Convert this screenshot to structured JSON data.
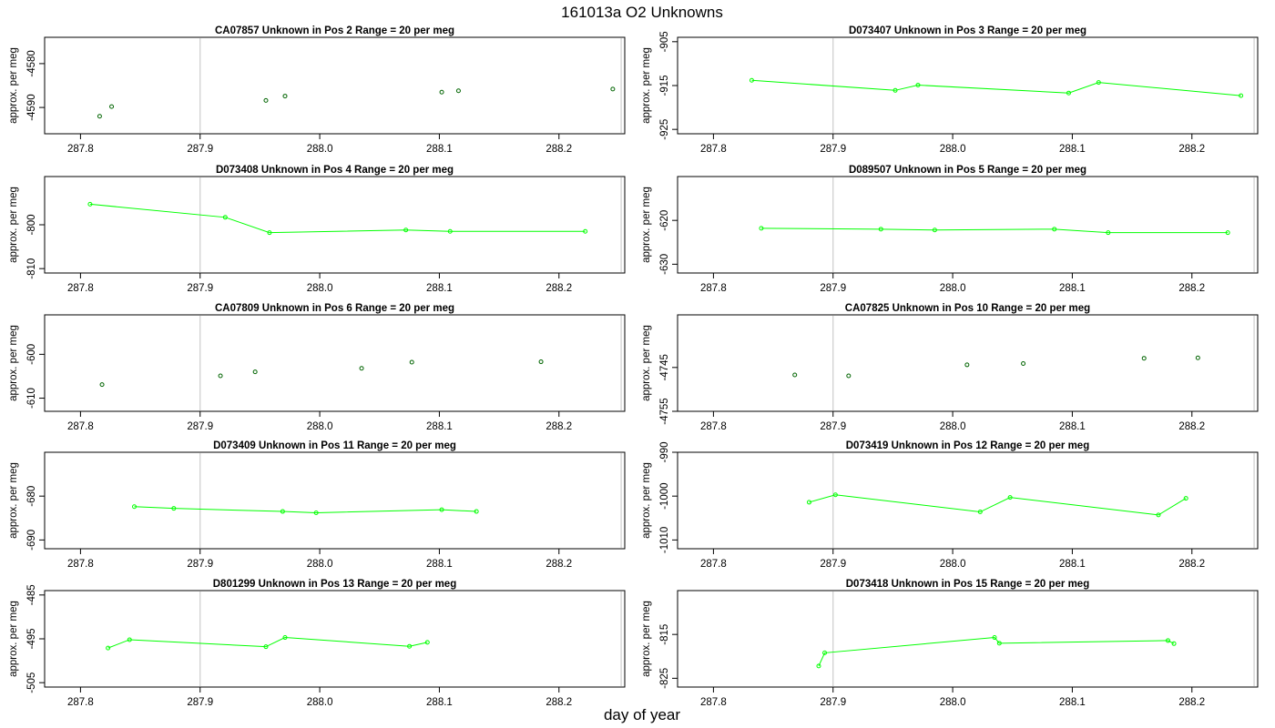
{
  "page": {
    "title": "161013a  O2 Unknowns",
    "xlabel": "day of year",
    "ylabel": "approx. per meg"
  },
  "colors": {
    "line": "#00ff00",
    "point_line": "#00ff00",
    "point_only": "#006400",
    "reference_line": "#cccccc",
    "frame": "#000000"
  },
  "chart_data": [
    {
      "type": "scatter",
      "title": "CA07857    Unknown in Pos 2          Range = 20 per meg",
      "xlabel": "",
      "ylabel": "approx. per meg",
      "xlim": [
        287.77,
        288.255
      ],
      "ylim": [
        -4596,
        -4574
      ],
      "yticks": [
        -4580,
        -4590
      ],
      "ytick_labels": [
        "-4580",
        "-4590"
      ],
      "xticks": [
        287.8,
        287.9,
        288.0,
        288.1,
        288.2
      ],
      "xtick_labels": [
        "287.8",
        "287.9",
        "288.0",
        "288.1",
        "288.2"
      ],
      "vlines": [
        287.9,
        288.252
      ],
      "connected": false,
      "series": [
        {
          "x": [
            287.816,
            287.826,
            287.955,
            287.971,
            288.102,
            288.116,
            288.245
          ],
          "y": [
            -4592.0,
            -4589.8,
            -4588.4,
            -4587.4,
            -4586.5,
            -4586.2,
            -4585.8
          ]
        }
      ]
    },
    {
      "type": "line",
      "title": "D073407    Unknown in Pos 3          Range = 20 per meg",
      "xlabel": "",
      "ylabel": "approx. per meg",
      "xlim": [
        287.77,
        288.255
      ],
      "ylim": [
        -926,
        -904
      ],
      "yticks": [
        -905,
        -915,
        -925
      ],
      "ytick_labels": [
        "-905",
        "-915",
        "-925"
      ],
      "xticks": [
        287.8,
        287.9,
        288.0,
        288.1,
        288.2
      ],
      "xtick_labels": [
        "287.8",
        "287.9",
        "288.0",
        "288.1",
        "288.2"
      ],
      "vlines": [
        287.9,
        288.252
      ],
      "connected": true,
      "series": [
        {
          "x": [
            287.832,
            287.952,
            287.971,
            288.097,
            288.122,
            288.241
          ],
          "y": [
            -913.8,
            -916.1,
            -914.9,
            -916.7,
            -914.3,
            -917.3
          ]
        }
      ]
    },
    {
      "type": "line",
      "title": "D073408    Unknown in Pos 4          Range = 20 per meg",
      "xlabel": "",
      "ylabel": "approx. per meg",
      "xlim": [
        287.77,
        288.255
      ],
      "ylim": [
        -811,
        -789
      ],
      "yticks": [
        -800,
        -810
      ],
      "ytick_labels": [
        "-800",
        "-810"
      ],
      "xticks": [
        287.8,
        287.9,
        288.0,
        288.1,
        288.2
      ],
      "xtick_labels": [
        "287.8",
        "287.9",
        "288.0",
        "288.1",
        "288.2"
      ],
      "vlines": [
        287.9,
        288.252
      ],
      "connected": true,
      "series": [
        {
          "x": [
            287.808,
            287.921,
            287.958,
            288.072,
            288.109,
            288.222
          ],
          "y": [
            -795.3,
            -798.3,
            -801.8,
            -801.2,
            -801.5,
            -801.5
          ]
        }
      ]
    },
    {
      "type": "line",
      "title": "D089507    Unknown in Pos 5          Range = 20 per meg",
      "xlabel": "",
      "ylabel": "approx. per meg",
      "xlim": [
        287.77,
        288.255
      ],
      "ylim": [
        -632,
        -610
      ],
      "yticks": [
        -620,
        -630
      ],
      "ytick_labels": [
        "-620",
        "-630"
      ],
      "xticks": [
        287.8,
        287.9,
        288.0,
        288.1,
        288.2
      ],
      "xtick_labels": [
        "287.8",
        "287.9",
        "288.0",
        "288.1",
        "288.2"
      ],
      "vlines": [
        287.9,
        288.252
      ],
      "connected": true,
      "series": [
        {
          "x": [
            287.84,
            287.94,
            287.985,
            288.085,
            288.13,
            288.23
          ],
          "y": [
            -621.8,
            -622.0,
            -622.2,
            -622.0,
            -622.8,
            -622.8
          ]
        }
      ]
    },
    {
      "type": "scatter",
      "title": "CA07809    Unknown in Pos 6          Range = 20 per meg",
      "xlabel": "",
      "ylabel": "approx. per meg",
      "xlim": [
        287.77,
        288.255
      ],
      "ylim": [
        -613,
        -591
      ],
      "yticks": [
        -600,
        -610
      ],
      "ytick_labels": [
        "-600",
        "-610"
      ],
      "xticks": [
        287.8,
        287.9,
        288.0,
        288.1,
        288.2
      ],
      "xtick_labels": [
        "287.8",
        "287.9",
        "288.0",
        "288.1",
        "288.2"
      ],
      "vlines": [
        287.9,
        288.252
      ],
      "connected": false,
      "series": [
        {
          "x": [
            287.818,
            287.917,
            287.946,
            288.035,
            288.077,
            288.185
          ],
          "y": [
            -606.9,
            -604.9,
            -604.0,
            -603.2,
            -601.8,
            -601.7
          ]
        }
      ]
    },
    {
      "type": "scatter",
      "title": "CA07825    Unknown in Pos 10          Range = 20 per meg",
      "xlabel": "",
      "ylabel": "approx. per meg",
      "xlim": [
        287.77,
        288.255
      ],
      "ylim": [
        -4755,
        -4733
      ],
      "yticks": [
        -4745,
        -4755
      ],
      "ytick_labels": [
        "-4745",
        "-4755"
      ],
      "xticks": [
        287.8,
        287.9,
        288.0,
        288.1,
        288.2
      ],
      "xtick_labels": [
        "287.8",
        "287.9",
        "288.0",
        "288.1",
        "288.2"
      ],
      "vlines": [
        287.9,
        288.252
      ],
      "connected": false,
      "series": [
        {
          "x": [
            287.868,
            287.913,
            288.012,
            288.059,
            288.16,
            288.205
          ],
          "y": [
            -4746.7,
            -4746.9,
            -4744.4,
            -4744.1,
            -4742.9,
            -4742.8
          ]
        }
      ]
    },
    {
      "type": "line",
      "title": "D073409    Unknown in Pos 11          Range = 20 per meg",
      "xlabel": "",
      "ylabel": "approx. per meg",
      "xlim": [
        287.77,
        288.255
      ],
      "ylim": [
        -692,
        -670
      ],
      "yticks": [
        -680,
        -690
      ],
      "ytick_labels": [
        "-680",
        "-690"
      ],
      "xticks": [
        287.8,
        287.9,
        288.0,
        288.1,
        288.2
      ],
      "xtick_labels": [
        "287.8",
        "287.9",
        "288.0",
        "288.1",
        "288.2"
      ],
      "vlines": [
        287.9,
        288.252
      ],
      "connected": true,
      "series": [
        {
          "x": [
            287.845,
            287.878,
            287.969,
            287.997,
            288.102,
            288.131
          ],
          "y": [
            -682.4,
            -682.8,
            -683.5,
            -683.8,
            -683.1,
            -683.5
          ]
        }
      ]
    },
    {
      "type": "line",
      "title": "D073419    Unknown in Pos 12          Range = 20 per meg",
      "xlabel": "",
      "ylabel": "approx. per meg",
      "xlim": [
        287.77,
        288.255
      ],
      "ylim": [
        -1012,
        -990
      ],
      "yticks": [
        -990,
        -1000,
        -1010
      ],
      "ytick_labels": [
        "-990",
        "-1000",
        "-1010"
      ],
      "xticks": [
        287.8,
        287.9,
        288.0,
        288.1,
        288.2
      ],
      "xtick_labels": [
        "287.8",
        "287.9",
        "288.0",
        "288.1",
        "288.2"
      ],
      "vlines": [
        287.9,
        288.252
      ],
      "connected": true,
      "series": [
        {
          "x": [
            287.88,
            287.902,
            288.023,
            288.048,
            288.172,
            288.195
          ],
          "y": [
            -1001.4,
            -999.7,
            -1003.6,
            -1000.3,
            -1004.3,
            -1000.5
          ]
        }
      ]
    },
    {
      "type": "line",
      "title": "D801299    Unknown in Pos 13          Range = 20 per meg",
      "xlabel": "",
      "ylabel": "approx. per meg",
      "xlim": [
        287.77,
        288.255
      ],
      "ylim": [
        -506,
        -484
      ],
      "yticks": [
        -485,
        -495,
        -505
      ],
      "ytick_labels": [
        "-485",
        "-495",
        "-505"
      ],
      "xticks": [
        287.8,
        287.9,
        288.0,
        288.1,
        288.2
      ],
      "xtick_labels": [
        "287.8",
        "287.9",
        "288.0",
        "288.1",
        "288.2"
      ],
      "vlines": [
        287.9,
        288.252
      ],
      "connected": true,
      "series": [
        {
          "x": [
            287.823,
            287.841,
            287.955,
            287.971,
            288.075,
            288.09
          ],
          "y": [
            -497.1,
            -495.2,
            -496.8,
            -494.7,
            -496.7,
            -495.8
          ]
        }
      ]
    },
    {
      "type": "line",
      "title": "D073418    Unknown in Pos 15          Range = 20 per meg",
      "xlabel": "",
      "ylabel": "approx. per meg",
      "xlim": [
        287.77,
        288.255
      ],
      "ylim": [
        -827,
        -805
      ],
      "yticks": [
        -815,
        -825
      ],
      "ytick_labels": [
        "-815",
        "-825"
      ],
      "xticks": [
        287.8,
        287.9,
        288.0,
        288.1,
        288.2
      ],
      "xtick_labels": [
        "287.8",
        "287.9",
        "288.0",
        "288.1",
        "288.2"
      ],
      "vlines": [
        287.9,
        288.252
      ],
      "connected": true,
      "series": [
        {
          "x": [
            287.888,
            287.893,
            288.035,
            288.039,
            288.18,
            288.185
          ],
          "y": [
            -822.2,
            -819.2,
            -815.7,
            -817.0,
            -816.4,
            -817.1
          ]
        }
      ]
    }
  ]
}
